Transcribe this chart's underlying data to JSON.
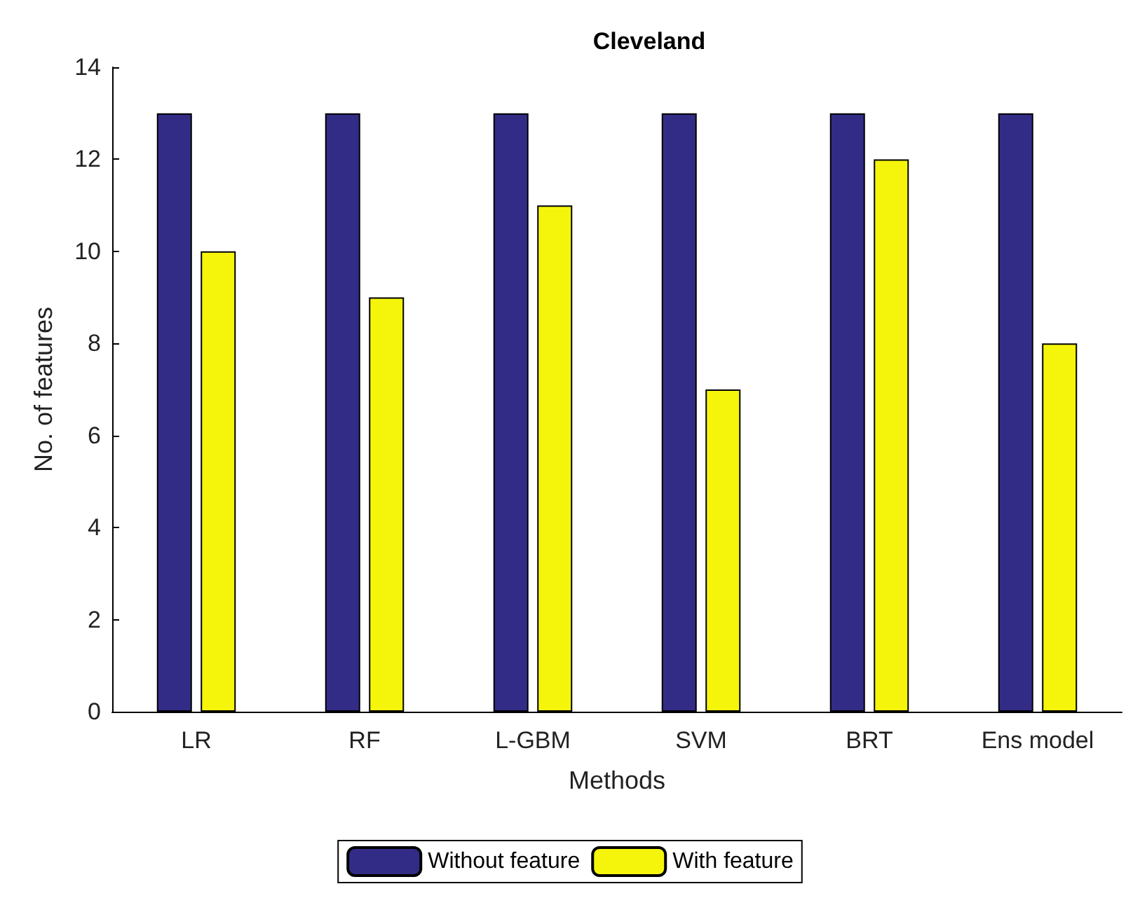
{
  "chart_data": {
    "type": "bar",
    "title": "Cleveland",
    "xlabel": "Methods",
    "ylabel": "No. of features",
    "categories": [
      "LR",
      "RF",
      "L-GBM",
      "SVM",
      "BRT",
      "Ens model"
    ],
    "series": [
      {
        "name": "Without feature",
        "color": "#332c87",
        "values": [
          13,
          13,
          13,
          13,
          13,
          13
        ]
      },
      {
        "name": "With feature",
        "color": "#f5f50c",
        "values": [
          10,
          9,
          11,
          7,
          12,
          8
        ]
      }
    ],
    "ylim": [
      0,
      14
    ],
    "yticks": [
      0,
      2,
      4,
      6,
      8,
      10,
      12,
      14
    ],
    "grid": false,
    "legend": "bottom"
  }
}
